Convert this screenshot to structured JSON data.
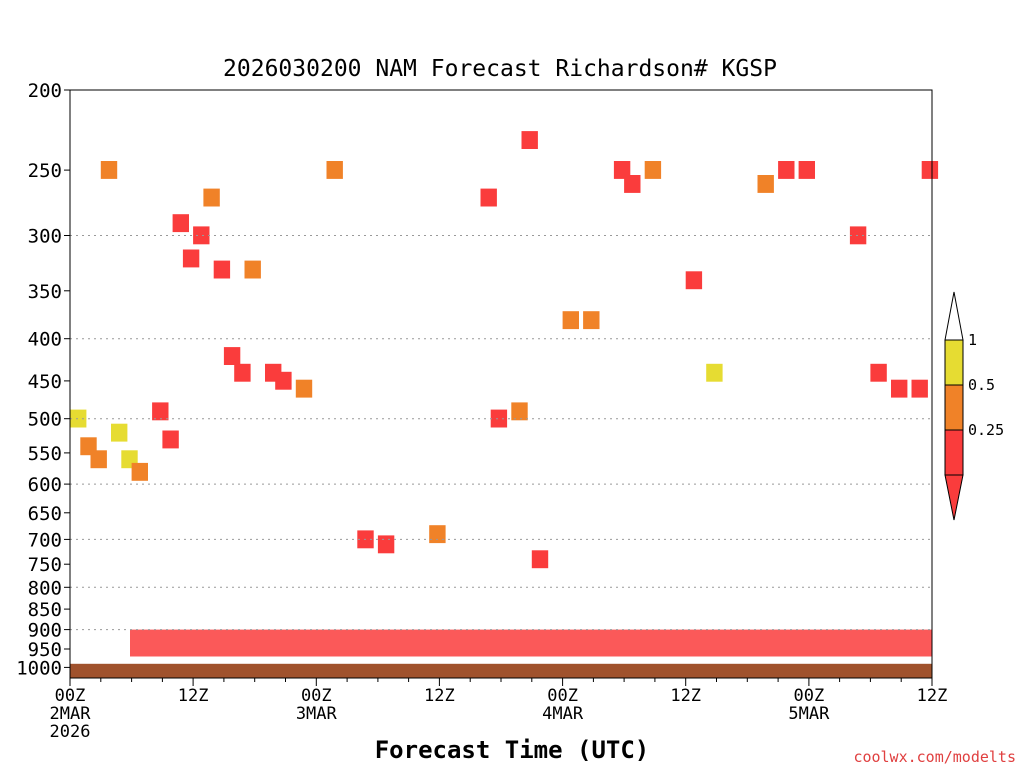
{
  "chart_data": {
    "type": "heatmap",
    "title": "2026030200 NAM Forecast Richardson# KGSP",
    "xlabel": "Forecast Time (UTC)",
    "ylabel": "",
    "credit": "coolwx.com/modelts",
    "x_range_hours": [
      0,
      84
    ],
    "y_range_hpa": [
      200,
      1030
    ],
    "y_scale": "log",
    "y_ticks": [
      "200",
      "250",
      "300",
      "350",
      "400",
      "450",
      "500",
      "550",
      "600",
      "650",
      "700",
      "750",
      "800",
      "850",
      "900",
      "950",
      "1000"
    ],
    "y_gridlines": [
      300,
      400,
      500,
      600,
      700,
      800,
      900
    ],
    "x_ticks": [
      {
        "hour": 0,
        "lines": [
          "00Z",
          "2MAR",
          "2026"
        ]
      },
      {
        "hour": 12,
        "lines": [
          "12Z"
        ]
      },
      {
        "hour": 24,
        "lines": [
          "00Z",
          "3MAR"
        ]
      },
      {
        "hour": 36,
        "lines": [
          "12Z"
        ]
      },
      {
        "hour": 48,
        "lines": [
          "00Z",
          "4MAR"
        ]
      },
      {
        "hour": 60,
        "lines": [
          "12Z"
        ]
      },
      {
        "hour": 72,
        "lines": [
          "00Z",
          "5MAR"
        ]
      },
      {
        "hour": 84,
        "lines": [
          "12Z"
        ]
      }
    ],
    "legend": {
      "placement": "right",
      "labels": [
        "1",
        "0.5",
        "0.25"
      ],
      "classes": [
        {
          "name": "1 to 0.5",
          "color": "#e6dc32"
        },
        {
          "name": "0.5 to 0.25",
          "color": "#f08228"
        },
        {
          "name": "below 0.25",
          "color": "#fa3c3c"
        }
      ]
    },
    "ground_color": "#a0522d",
    "cells": [
      {
        "t": 0,
        "p": 500,
        "c": 0
      },
      {
        "t": 1,
        "p": 540,
        "c": 1
      },
      {
        "t": 2,
        "p": 560,
        "c": 1
      },
      {
        "t": 3,
        "p": 250,
        "c": 1
      },
      {
        "t": 4,
        "p": 520,
        "c": 0
      },
      {
        "t": 5,
        "p": 560,
        "c": 0
      },
      {
        "t": 6,
        "p": 580,
        "c": 1
      },
      {
        "t": 8,
        "p": 490,
        "c": 2
      },
      {
        "t": 9,
        "p": 530,
        "c": 2
      },
      {
        "t": 10,
        "p": 290,
        "c": 2
      },
      {
        "t": 11,
        "p": 320,
        "c": 2
      },
      {
        "t": 12,
        "p": 300,
        "c": 2
      },
      {
        "t": 13,
        "p": 270,
        "c": 1
      },
      {
        "t": 14,
        "p": 330,
        "c": 2
      },
      {
        "t": 15,
        "p": 420,
        "c": 2
      },
      {
        "t": 16,
        "p": 440,
        "c": 2
      },
      {
        "t": 17,
        "p": 330,
        "c": 1
      },
      {
        "t": 19,
        "p": 440,
        "c": 2
      },
      {
        "t": 20,
        "p": 450,
        "c": 2
      },
      {
        "t": 22,
        "p": 460,
        "c": 1
      },
      {
        "t": 25,
        "p": 250,
        "c": 1
      },
      {
        "t": 28,
        "p": 700,
        "c": 2
      },
      {
        "t": 30,
        "p": 710,
        "c": 2
      },
      {
        "t": 35,
        "p": 690,
        "c": 1
      },
      {
        "t": 40,
        "p": 270,
        "c": 2
      },
      {
        "t": 41,
        "p": 500,
        "c": 2
      },
      {
        "t": 43,
        "p": 490,
        "c": 1
      },
      {
        "t": 44,
        "p": 230,
        "c": 2
      },
      {
        "t": 45,
        "p": 740,
        "c": 2
      },
      {
        "t": 48,
        "p": 380,
        "c": 1
      },
      {
        "t": 50,
        "p": 380,
        "c": 1
      },
      {
        "t": 53,
        "p": 250,
        "c": 2
      },
      {
        "t": 54,
        "p": 260,
        "c": 2
      },
      {
        "t": 56,
        "p": 250,
        "c": 1
      },
      {
        "t": 60,
        "p": 340,
        "c": 2
      },
      {
        "t": 62,
        "p": 440,
        "c": 0
      },
      {
        "t": 67,
        "p": 260,
        "c": 1
      },
      {
        "t": 69,
        "p": 250,
        "c": 2
      },
      {
        "t": 71,
        "p": 250,
        "c": 2
      },
      {
        "t": 76,
        "p": 300,
        "c": 2
      },
      {
        "t": 78,
        "p": 440,
        "c": 2
      },
      {
        "t": 80,
        "p": 460,
        "c": 2
      },
      {
        "t": 82,
        "p": 460,
        "c": 2
      },
      {
        "t": 83,
        "p": 250,
        "c": 2
      }
    ],
    "near_surface_layer": {
      "p_top": 900,
      "p_bottom": 970,
      "dominant_class": 2
    }
  }
}
